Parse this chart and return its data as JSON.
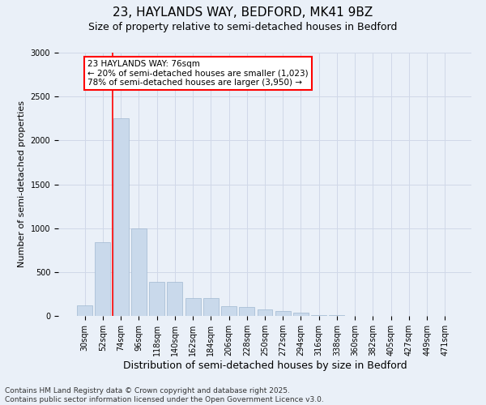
{
  "title1": "23, HAYLANDS WAY, BEDFORD, MK41 9BZ",
  "title2": "Size of property relative to semi-detached houses in Bedford",
  "xlabel": "Distribution of semi-detached houses by size in Bedford",
  "ylabel": "Number of semi-detached properties",
  "categories": [
    "30sqm",
    "52sqm",
    "74sqm",
    "96sqm",
    "118sqm",
    "140sqm",
    "162sqm",
    "184sqm",
    "206sqm",
    "228sqm",
    "250sqm",
    "272sqm",
    "294sqm",
    "316sqm",
    "338sqm",
    "360sqm",
    "382sqm",
    "405sqm",
    "427sqm",
    "449sqm",
    "471sqm"
  ],
  "values": [
    120,
    840,
    2250,
    1000,
    390,
    390,
    200,
    200,
    110,
    100,
    75,
    60,
    40,
    10,
    5,
    4,
    3,
    2,
    1,
    1,
    0
  ],
  "bar_color": "#c9d9eb",
  "bar_edge_color": "#a0b8d0",
  "grid_color": "#d0d8e8",
  "background_color": "#eaf0f8",
  "vline_color": "red",
  "vline_pos": 1.55,
  "annotation_text": "23 HAYLANDS WAY: 76sqm\n← 20% of semi-detached houses are smaller (1,023)\n78% of semi-detached houses are larger (3,950) →",
  "annotation_box_color": "white",
  "annotation_box_edge_color": "red",
  "footnote": "Contains HM Land Registry data © Crown copyright and database right 2025.\nContains public sector information licensed under the Open Government Licence v3.0.",
  "ylim": [
    0,
    3000
  ],
  "yticks": [
    0,
    500,
    1000,
    1500,
    2000,
    2500,
    3000
  ],
  "title1_fontsize": 11,
  "title2_fontsize": 9,
  "xlabel_fontsize": 9,
  "ylabel_fontsize": 8,
  "tick_fontsize": 7,
  "annotation_fontsize": 7.5,
  "footnote_fontsize": 6.5
}
